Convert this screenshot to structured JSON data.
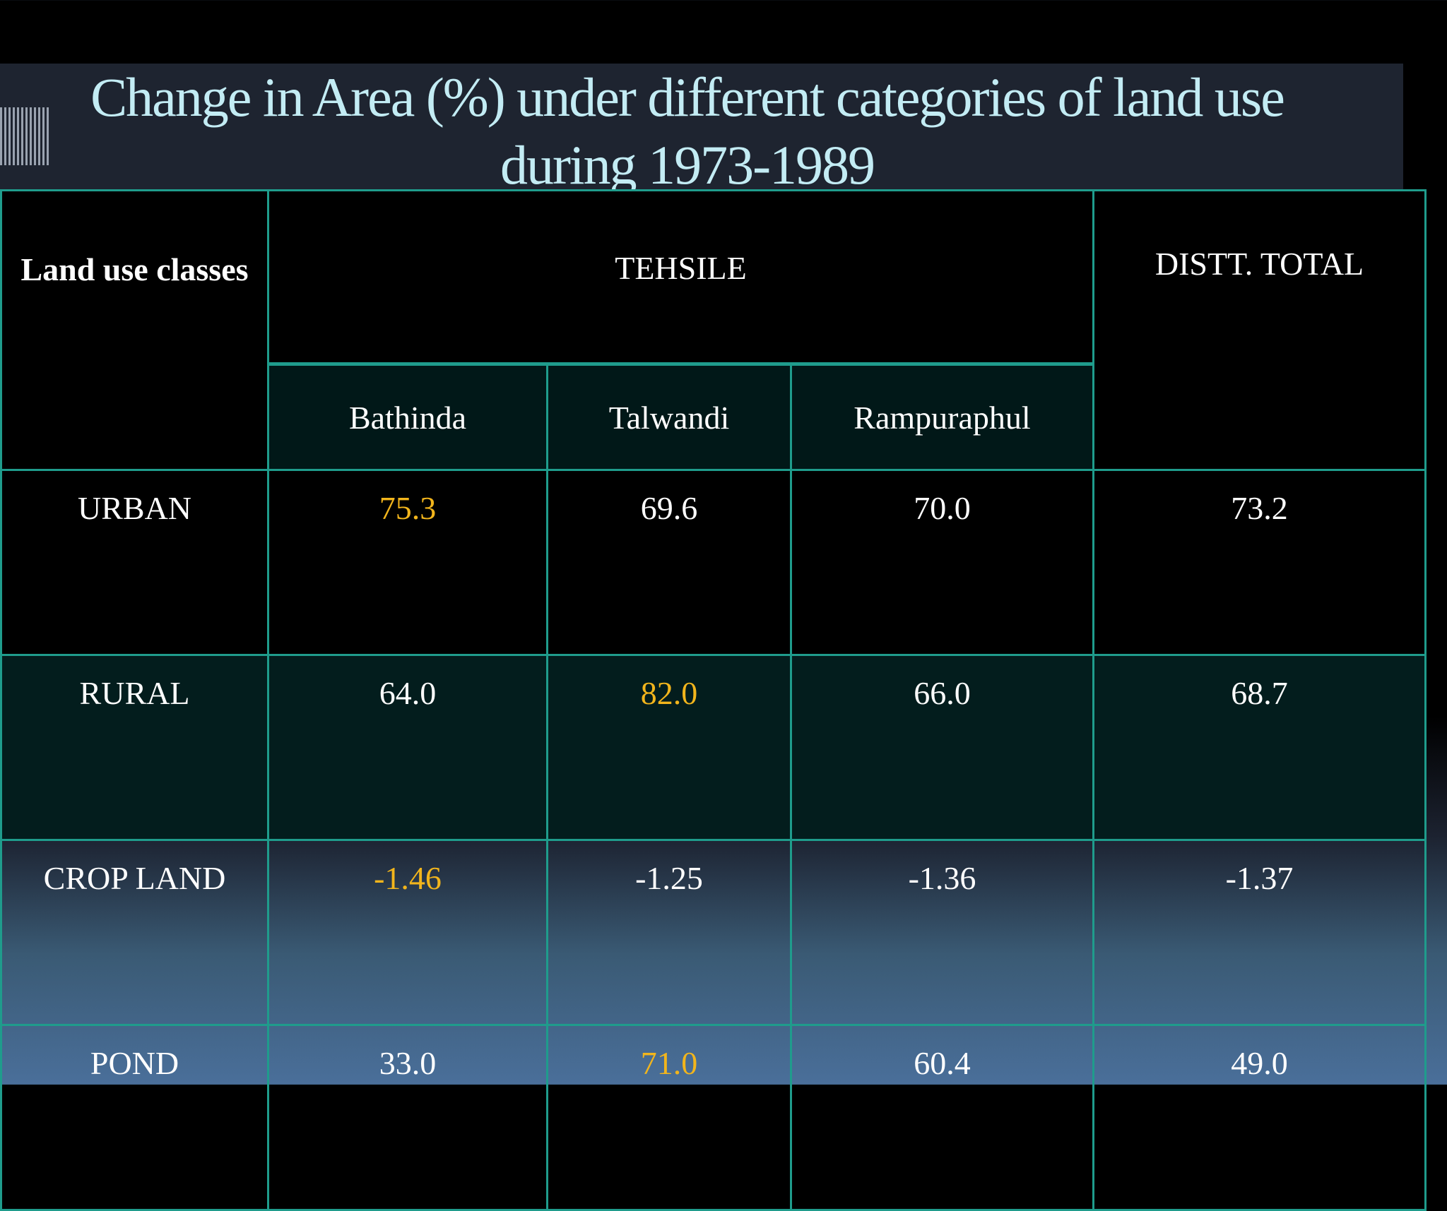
{
  "title": {
    "line1": "Change in Area (%) under different categories of land use",
    "line2": "during  1973-1989"
  },
  "table": {
    "class_header": "Land use classes",
    "group_header": "TEHSILE",
    "total_header": "DISTT. TOTAL",
    "columns": [
      "Bathinda",
      "Talwandi",
      "Rampuraphul"
    ],
    "rows": [
      {
        "label": "URBAN",
        "values": [
          "75.3",
          "69.6",
          "70.0"
        ],
        "total": "73.2",
        "highlight_col": 0
      },
      {
        "label": "RURAL",
        "values": [
          "64.0",
          "82.0",
          "66.0"
        ],
        "total": "68.7",
        "highlight_col": 1
      },
      {
        "label": "CROP  LAND",
        "values": [
          "-1.46",
          "-1.25",
          "-1.36"
        ],
        "total": "-1.37",
        "highlight_col": 0
      },
      {
        "label": "POND",
        "values": [
          "33.0",
          "71.0",
          "60.4"
        ],
        "total": "49.0",
        "highlight_col": 1
      }
    ]
  },
  "colors": {
    "title_text": "#c3ecf4",
    "grid_border": "#1f9c8c",
    "highlight_value": "#f2b51c"
  }
}
